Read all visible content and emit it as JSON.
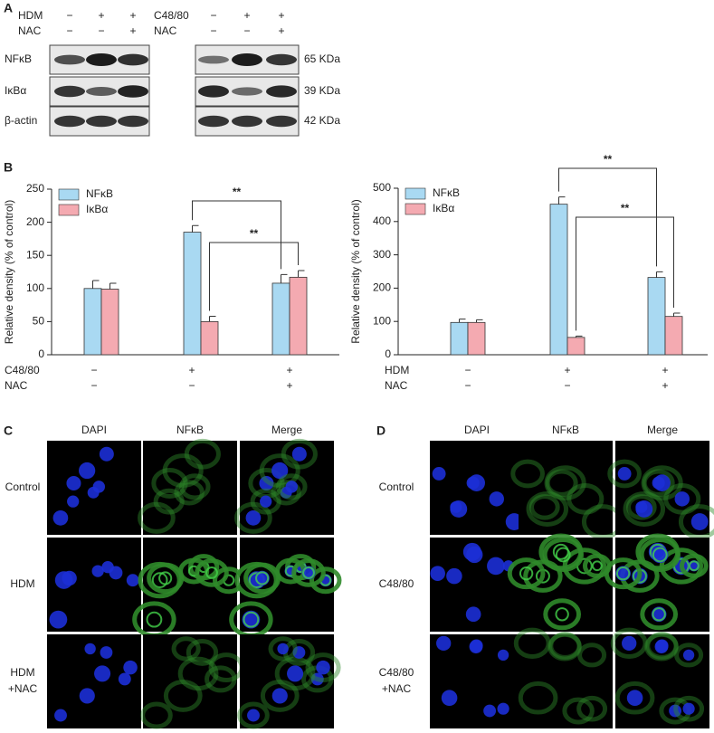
{
  "panel_a": {
    "label": "A",
    "left": {
      "rows": [
        "HDM",
        "NAC"
      ],
      "signs": [
        [
          "−",
          "+",
          "+"
        ],
        [
          "−",
          "−",
          "+"
        ]
      ]
    },
    "right": {
      "rows": [
        "C48/80",
        "NAC"
      ],
      "signs": [
        [
          "−",
          "+",
          "+"
        ],
        [
          "−",
          "−",
          "+"
        ]
      ]
    },
    "proteins": [
      "NFκB",
      "IκBα",
      "β-actin"
    ],
    "sizes": [
      "65 KDa",
      "39 KDa",
      "42 KDa"
    ]
  },
  "panel_b": {
    "label": "B"
  },
  "chart_data": [
    {
      "type": "bar",
      "y_label": "Relative density (% of control)",
      "ylim": [
        0,
        250
      ],
      "yticks": [
        0,
        50,
        100,
        150,
        200,
        250
      ],
      "conditions": [
        {
          "name": "C48/80",
          "signs": [
            "−",
            "+",
            "+"
          ]
        },
        {
          "name": "NAC",
          "signs": [
            "−",
            "−",
            "+"
          ]
        }
      ],
      "series": [
        {
          "name": "NFκB",
          "color": "#a9d9f2",
          "values": [
            100,
            185,
            108
          ],
          "errors": [
            12,
            10,
            13
          ]
        },
        {
          "name": "IκBα",
          "color": "#f4aab1",
          "values": [
            99,
            50,
            117
          ],
          "errors": [
            9,
            8,
            10
          ]
        }
      ],
      "annotations": [
        "**",
        "**"
      ],
      "legend": "upper left"
    },
    {
      "type": "bar",
      "y_label": "Relative density (% of control)",
      "ylim": [
        0,
        500
      ],
      "yticks": [
        0,
        100,
        200,
        300,
        400,
        500
      ],
      "conditions": [
        {
          "name": "HDM",
          "signs": [
            "−",
            "+",
            "+"
          ]
        },
        {
          "name": "NAC",
          "signs": [
            "−",
            "−",
            "+"
          ]
        }
      ],
      "series": [
        {
          "name": "NFκB",
          "color": "#a9d9f2",
          "values": [
            97,
            452,
            232
          ],
          "errors": [
            10,
            22,
            17
          ]
        },
        {
          "name": "IκBα",
          "color": "#f4aab1",
          "values": [
            97,
            52,
            115
          ],
          "errors": [
            8,
            4,
            10
          ]
        }
      ],
      "annotations": [
        "**",
        "**"
      ],
      "legend": "upper left"
    }
  ],
  "panel_c": {
    "label": "C",
    "columns": [
      "DAPI",
      "NFκB",
      "Merge"
    ],
    "rows": [
      [
        "Control"
      ],
      [
        "HDM"
      ],
      [
        "HDM",
        "+NAC"
      ]
    ]
  },
  "panel_d": {
    "label": "D",
    "columns": [
      "DAPI",
      "NFκB",
      "Merge"
    ],
    "rows": [
      [
        "Control"
      ],
      [
        "C48/80"
      ],
      [
        "C48/80",
        "+NAC"
      ]
    ]
  }
}
